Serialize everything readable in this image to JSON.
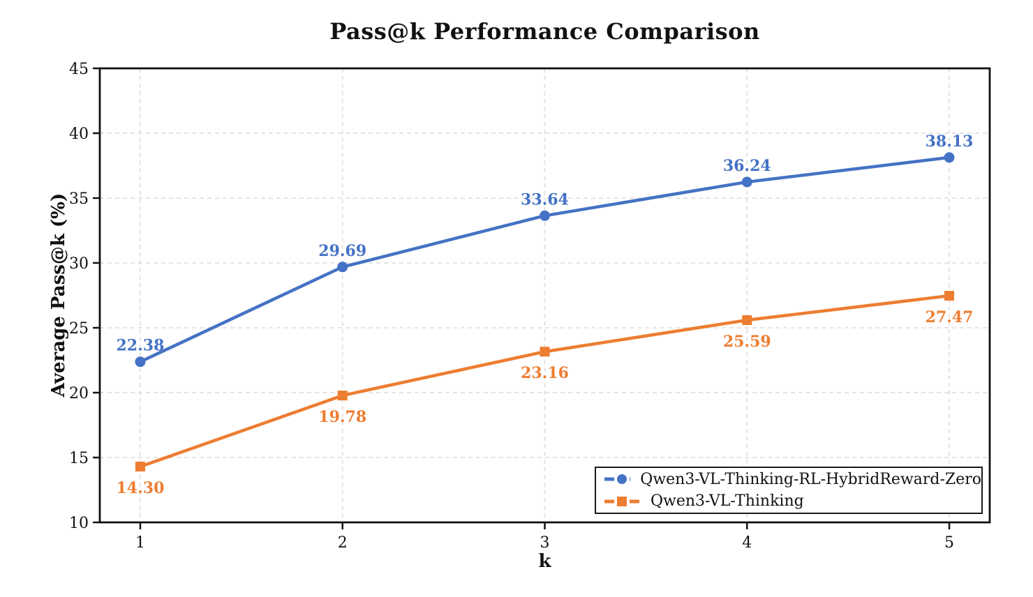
{
  "chart_data": {
    "type": "line",
    "title": "Pass@k Performance Comparison",
    "xlabel": "k",
    "ylabel": "Average Pass@k (%)",
    "x": [
      1,
      2,
      3,
      4,
      5
    ],
    "xticks": [
      1,
      2,
      3,
      4,
      5
    ],
    "yticks": [
      10,
      15,
      20,
      25,
      30,
      35,
      40,
      45
    ],
    "xlim": [
      0.8,
      5.2
    ],
    "ylim": [
      10,
      45
    ],
    "grid": true,
    "legend_position": "lower right",
    "series": [
      {
        "name": "Qwen3-VL-Thinking-RL-HybridReward-Zero",
        "values": [
          22.38,
          29.69,
          33.64,
          36.24,
          38.13
        ],
        "color": "#4472C4",
        "marker": "circle",
        "label_side": "above"
      },
      {
        "name": "Qwen3-VL-Thinking",
        "values": [
          14.3,
          19.78,
          23.16,
          25.59,
          27.47
        ],
        "color": "#ED7D31",
        "marker": "square",
        "label_side": "below"
      }
    ]
  }
}
